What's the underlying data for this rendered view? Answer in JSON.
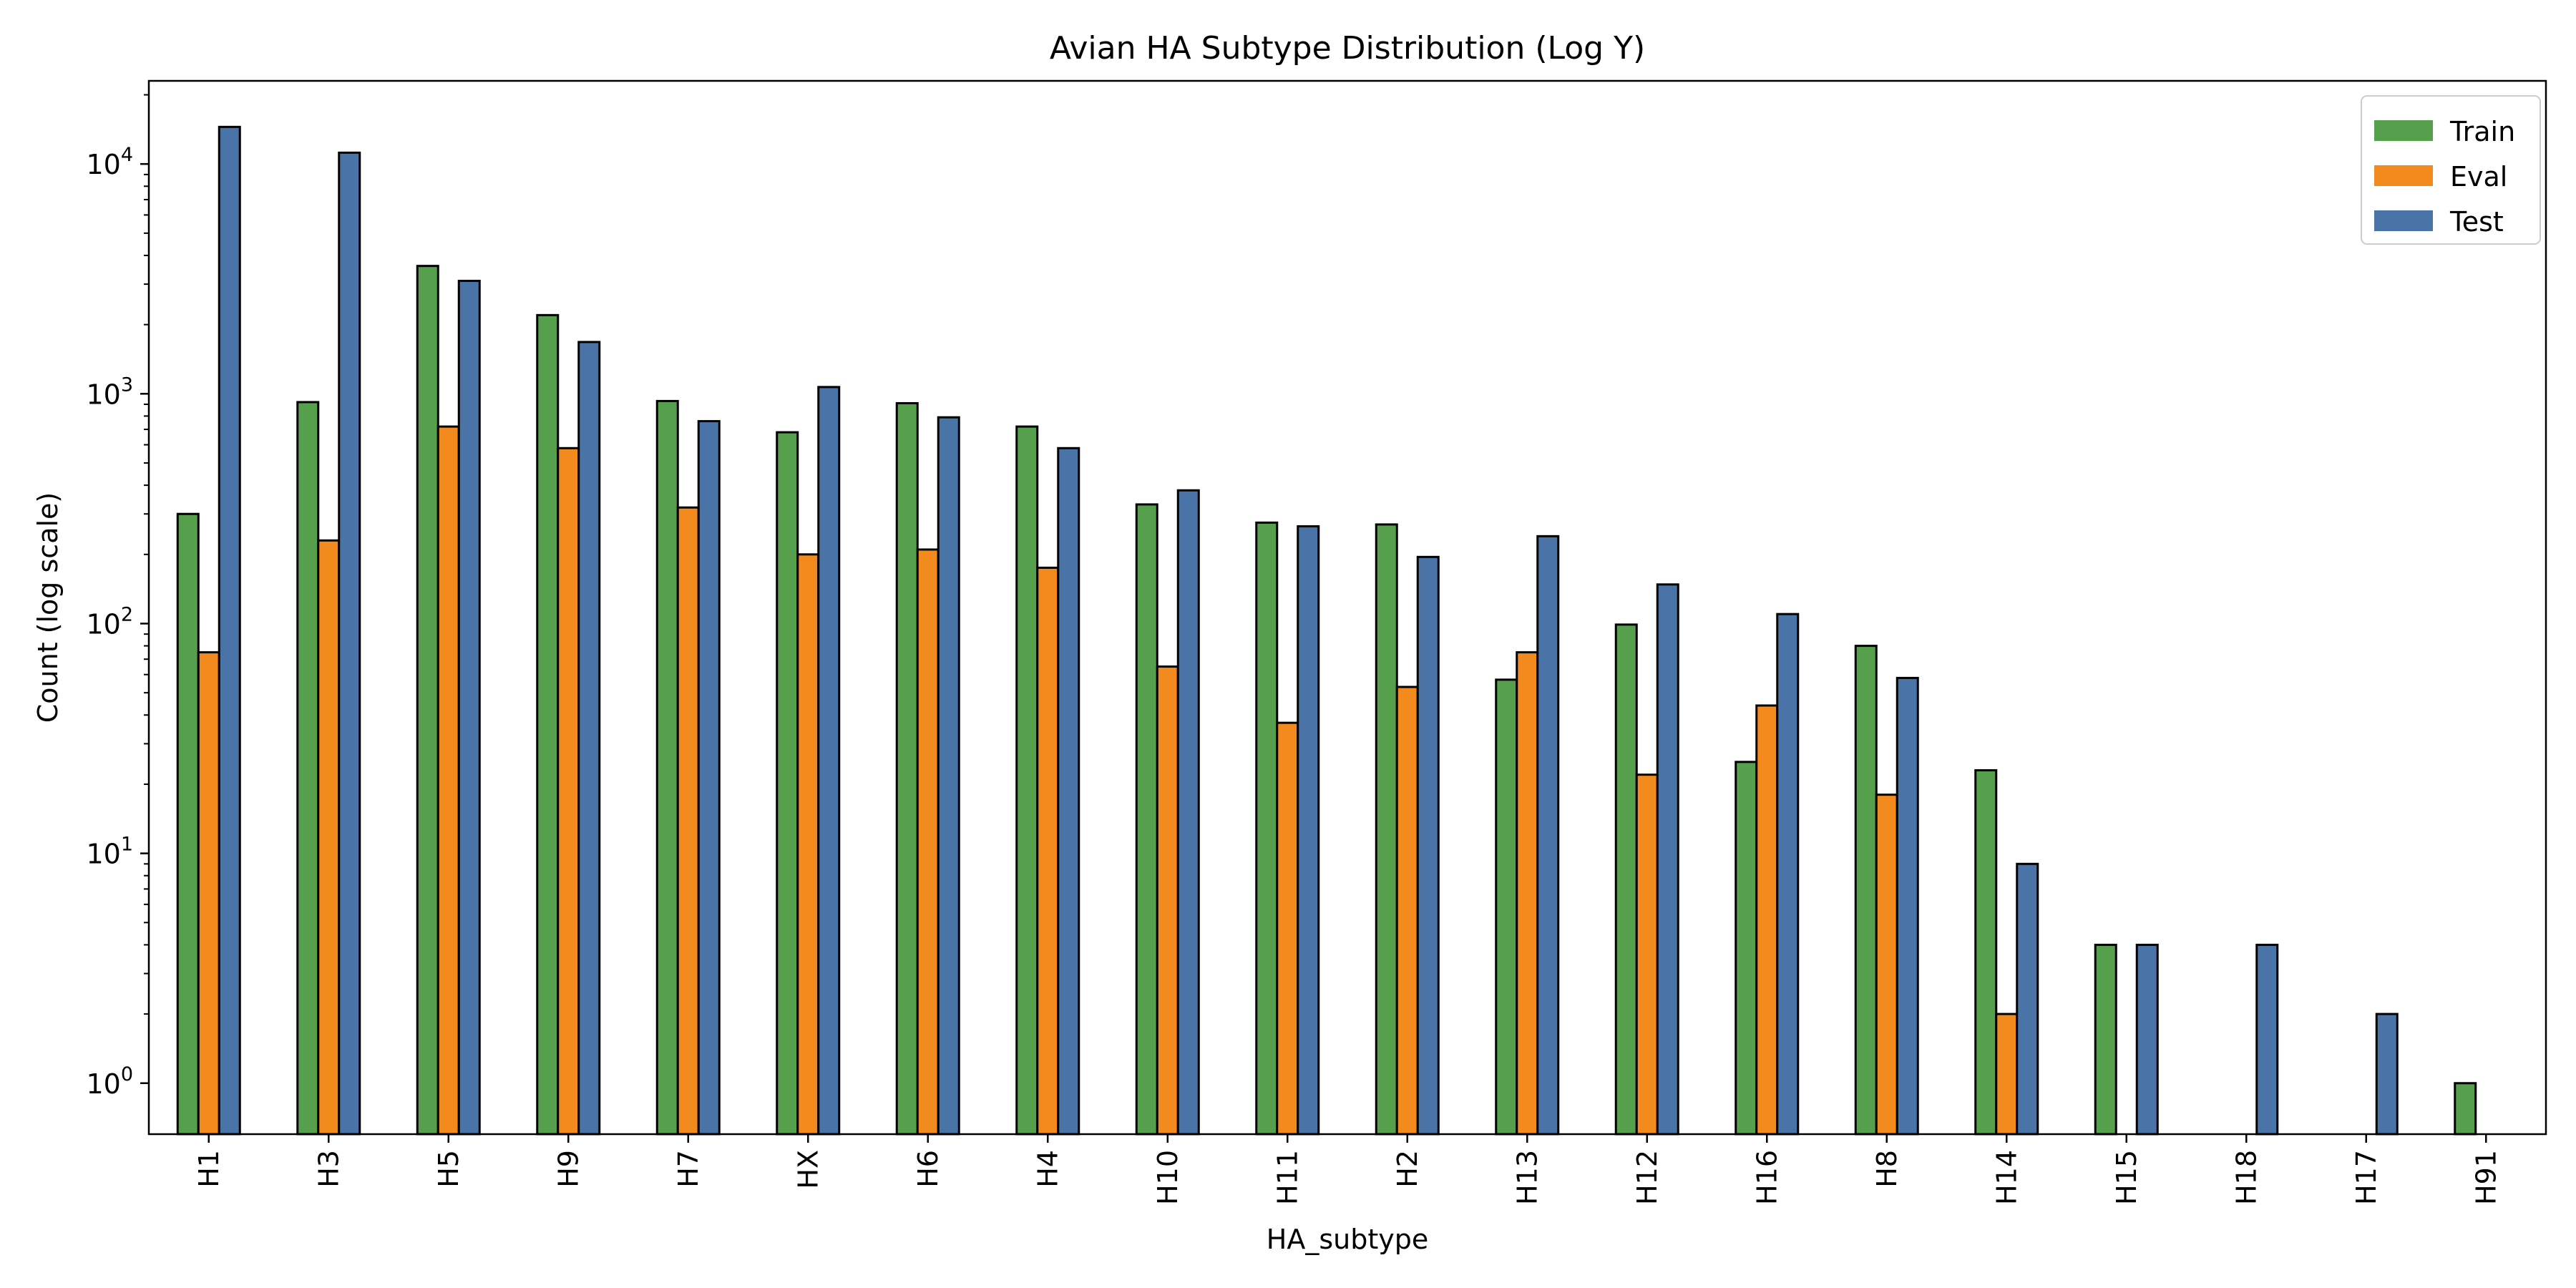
{
  "chart_data": {
    "type": "bar",
    "title": "Avian HA Subtype Distribution (Log Y)",
    "xlabel": "HA_subtype",
    "ylabel": "Count (log scale)",
    "y_scale": "log",
    "ylim": [
      0.6,
      23000
    ],
    "y_ticks": [
      {
        "value": 1,
        "base": "10",
        "exp": "0"
      },
      {
        "value": 10,
        "base": "10",
        "exp": "1"
      },
      {
        "value": 100,
        "base": "10",
        "exp": "2"
      },
      {
        "value": 1000,
        "base": "10",
        "exp": "3"
      },
      {
        "value": 10000,
        "base": "10",
        "exp": "4"
      }
    ],
    "grid": false,
    "legend_position": "top-right",
    "categories": [
      "H1",
      "H3",
      "H5",
      "H9",
      "H7",
      "HX",
      "H6",
      "H4",
      "H10",
      "H11",
      "H2",
      "H13",
      "H12",
      "H16",
      "H8",
      "H14",
      "H15",
      "H18",
      "H17",
      "H91"
    ],
    "series": [
      {
        "name": "Train",
        "color": "#56a04d",
        "values": [
          300,
          920,
          3600,
          2200,
          930,
          680,
          910,
          720,
          330,
          275,
          270,
          57,
          99,
          25,
          80,
          23,
          4,
          0,
          0,
          1
        ]
      },
      {
        "name": "Eval",
        "color": "#f28a1d",
        "values": [
          75,
          230,
          720,
          580,
          320,
          200,
          210,
          175,
          65,
          37,
          53,
          75,
          22,
          44,
          18,
          2,
          0,
          0,
          0,
          0
        ]
      },
      {
        "name": "Test",
        "color": "#4a74a8",
        "values": [
          14500,
          11200,
          3100,
          1680,
          760,
          1070,
          790,
          580,
          380,
          265,
          195,
          240,
          148,
          110,
          58,
          9,
          4,
          4,
          2,
          0
        ]
      }
    ]
  }
}
